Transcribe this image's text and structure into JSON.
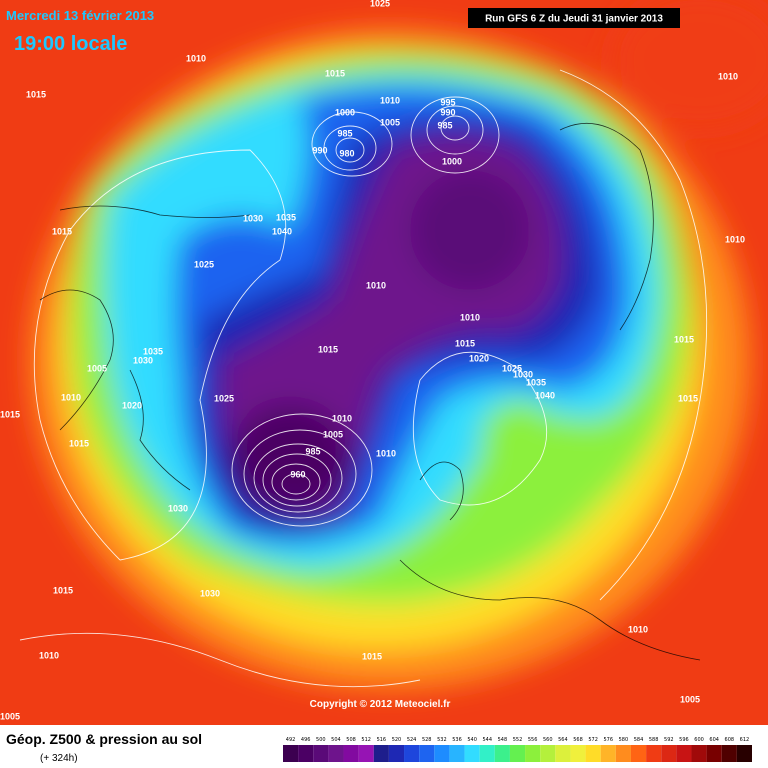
{
  "header": {
    "date": "Mercredi 13 février 2013",
    "time": "19:00 locale",
    "run": "Run GFS 6 Z du Jeudi 31 janvier 2013"
  },
  "map": {
    "pressure_labels": [
      1025,
      1010,
      1015,
      1015,
      1010,
      1000,
      1005,
      985,
      990,
      980,
      995,
      990,
      985,
      1000,
      1010,
      1030,
      1035,
      1040,
      1015,
      1025,
      1010,
      1010,
      1010,
      1015,
      1015,
      1020,
      1025,
      1030,
      1035,
      1040,
      1015,
      1015,
      1035,
      1030,
      1005,
      1010,
      1020,
      1025,
      1015,
      1015,
      1010,
      1005,
      1010,
      985,
      960,
      1030,
      1030,
      1015,
      1010,
      1015,
      1010,
      1005,
      1005
    ],
    "copyright": "Copyright © 2012 Meteociel.fr"
  },
  "footer": {
    "title": "Géop. Z500 & pression au sol",
    "lead": "(+ 324h)"
  },
  "scale": {
    "values": [
      492,
      496,
      500,
      504,
      508,
      512,
      516,
      520,
      524,
      528,
      532,
      536,
      540,
      544,
      548,
      552,
      556,
      560,
      564,
      568,
      572,
      576,
      580,
      584,
      588,
      592,
      596,
      600,
      604,
      608,
      612
    ],
    "colors": [
      "#3c0050",
      "#4b0064",
      "#5a0a78",
      "#6e148c",
      "#820aa0",
      "#9614b4",
      "#1e1e8c",
      "#1e28b4",
      "#1e46dc",
      "#1e64f0",
      "#1e8cff",
      "#28b4ff",
      "#32dcff",
      "#32f0c8",
      "#3cf08c",
      "#64f050",
      "#8cf03c",
      "#b4f03c",
      "#dcf03c",
      "#f0f03c",
      "#ffdc28",
      "#ffb428",
      "#ff8c1e",
      "#ff6414",
      "#f03c14",
      "#dc2814",
      "#c81414",
      "#a00a0a",
      "#780000",
      "#500000",
      "#280000"
    ]
  }
}
